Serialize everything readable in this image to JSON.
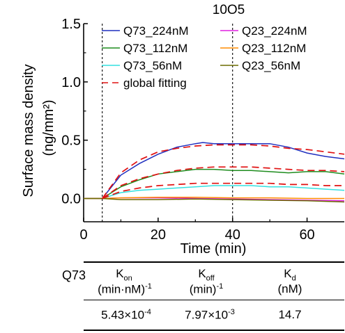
{
  "chart_data": {
    "type": "line",
    "title": "10O5",
    "xlabel": "Time (min)",
    "ylabel_main": "Surface mass density",
    "ylabel_unit": "(ng/mm²)",
    "xlim": [
      0,
      70
    ],
    "ylim": [
      -0.2,
      1.5
    ],
    "xticks": [
      0,
      20,
      40,
      60
    ],
    "yticks": [
      0.0,
      0.5,
      1.0,
      1.5
    ],
    "ytick_labels": [
      "0.0",
      "0.5",
      "1.0",
      "1.5"
    ],
    "vlines": [
      5,
      40
    ],
    "grid": false,
    "legend_position": "top",
    "series": [
      {
        "name": "Q73_224nM",
        "color": "#1f2fbf",
        "style": "solid",
        "x": [
          0,
          5,
          8,
          10,
          15,
          20,
          25,
          30,
          32,
          35,
          40,
          45,
          50,
          55,
          60,
          65,
          70
        ],
        "y": [
          0,
          0,
          0.12,
          0.2,
          0.3,
          0.38,
          0.44,
          0.47,
          0.48,
          0.47,
          0.47,
          0.47,
          0.47,
          0.44,
          0.39,
          0.36,
          0.34
        ]
      },
      {
        "name": "Q73_112nM",
        "color": "#1e8c1e",
        "style": "solid",
        "x": [
          0,
          5,
          8,
          10,
          15,
          20,
          25,
          30,
          35,
          40,
          45,
          50,
          55,
          60,
          65,
          70
        ],
        "y": [
          0,
          0,
          0.06,
          0.1,
          0.16,
          0.21,
          0.23,
          0.25,
          0.25,
          0.24,
          0.24,
          0.23,
          0.22,
          0.23,
          0.23,
          0.21
        ]
      },
      {
        "name": "Q73_56nM",
        "color": "#33e0e0",
        "style": "solid",
        "x": [
          0,
          5,
          8,
          10,
          15,
          20,
          25,
          30,
          35,
          40,
          45,
          50,
          55,
          60,
          65,
          70
        ],
        "y": [
          0,
          0,
          0.03,
          0.05,
          0.07,
          0.08,
          0.09,
          0.1,
          0.11,
          0.11,
          0.11,
          0.1,
          0.1,
          0.09,
          0.08,
          0.07
        ]
      },
      {
        "name": "Q23_224nM",
        "color": "#e020e0",
        "style": "solid",
        "x": [
          0,
          5,
          10,
          20,
          30,
          40,
          50,
          60,
          70
        ],
        "y": [
          0,
          0,
          0.005,
          0.005,
          0,
          -0.005,
          -0.01,
          -0.015,
          -0.02
        ]
      },
      {
        "name": "Q23_112nM",
        "color": "#ff8c00",
        "style": "solid",
        "x": [
          0,
          5,
          10,
          20,
          30,
          40,
          50,
          60,
          70
        ],
        "y": [
          0,
          0,
          0.005,
          0.01,
          0.01,
          0.005,
          0.005,
          0.0,
          0.0
        ]
      },
      {
        "name": "Q23_56nM",
        "color": "#6b6b00",
        "style": "solid",
        "x": [
          0,
          5,
          10,
          20,
          30,
          40,
          50,
          60,
          70
        ],
        "y": [
          0,
          0,
          -0.01,
          -0.01,
          -0.005,
          -0.01,
          -0.015,
          -0.02,
          -0.03
        ]
      },
      {
        "name": "global fitting",
        "color": "#e01010",
        "style": "dashed",
        "x": [
          5,
          10,
          15,
          20,
          25,
          30,
          35,
          40,
          45,
          50,
          55,
          60,
          65,
          70
        ],
        "y": [
          0,
          0.22,
          0.33,
          0.4,
          0.43,
          0.45,
          0.46,
          0.46,
          0.46,
          0.45,
          0.43,
          0.42,
          0.4,
          0.38
        ]
      }
    ],
    "fit_extra": [
      {
        "color": "#e01010",
        "x": [
          5,
          10,
          15,
          20,
          25,
          30,
          35,
          40,
          45,
          50,
          55,
          60,
          65,
          70
        ],
        "y": [
          0,
          0.11,
          0.17,
          0.21,
          0.24,
          0.26,
          0.27,
          0.27,
          0.27,
          0.26,
          0.25,
          0.24,
          0.24,
          0.23
        ]
      },
      {
        "color": "#e01010",
        "x": [
          5,
          10,
          15,
          20,
          25,
          30,
          35,
          40,
          45,
          50,
          55,
          60,
          65,
          70
        ],
        "y": [
          0,
          0.06,
          0.09,
          0.11,
          0.12,
          0.13,
          0.13,
          0.13,
          0.13,
          0.13,
          0.12,
          0.12,
          0.11,
          0.11
        ]
      }
    ]
  },
  "table": {
    "row_label": "Q73",
    "headers": [
      {
        "main": "K",
        "sub": "on",
        "unit": "(min·nM)",
        "unit_sup": "-1"
      },
      {
        "main": "K",
        "sub": "off",
        "unit": "(min)",
        "unit_sup": "-1"
      },
      {
        "main": "K",
        "sub": "d",
        "unit": "(nM)",
        "unit_sup": ""
      }
    ],
    "values": [
      {
        "mant": "5.43×10",
        "exp": "-4"
      },
      {
        "mant": "7.97×10",
        "exp": "-3"
      },
      {
        "mant": "14.7",
        "exp": ""
      }
    ]
  }
}
